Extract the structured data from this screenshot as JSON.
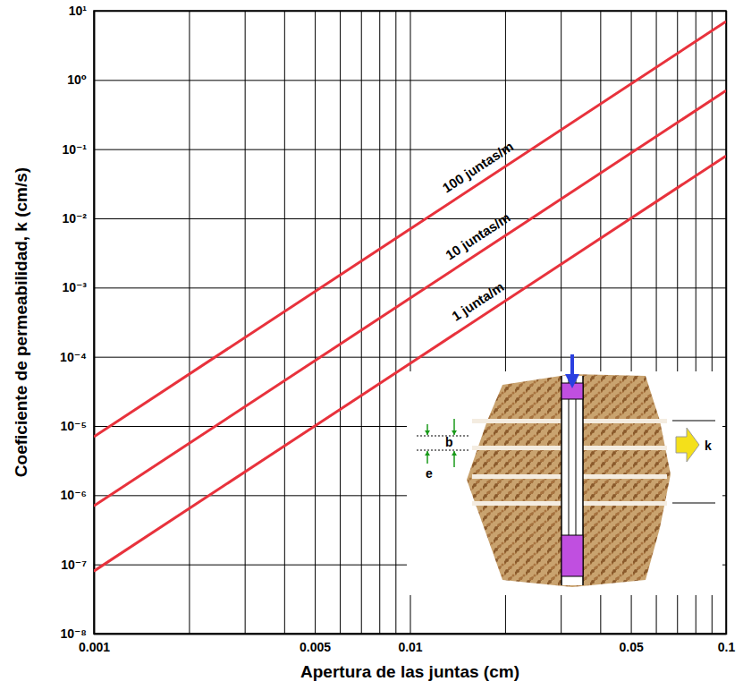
{
  "chart_data": {
    "type": "line",
    "log": true,
    "grid": true,
    "xlabel": "Apertura de las juntas (cm)",
    "ylabel": "Coeficiente de permeabilidad, k (cm/s)",
    "xlim": [
      0.001,
      0.1
    ],
    "ylim": [
      1e-08,
      10
    ],
    "xticks": [
      0.001,
      {
        "value": 0.002,
        "label": null
      },
      {
        "value": 0.003,
        "label": null
      },
      {
        "value": 0.004,
        "label": null
      },
      0.005,
      {
        "value": 0.006,
        "label": null
      },
      {
        "value": 0.007,
        "label": null
      },
      {
        "value": 0.008,
        "label": null
      },
      {
        "value": 0.009,
        "label": null
      },
      0.01,
      {
        "value": 0.02,
        "label": null
      },
      {
        "value": 0.03,
        "label": null
      },
      {
        "value": 0.04,
        "label": null
      },
      0.05,
      {
        "value": 0.06,
        "label": null
      },
      {
        "value": 0.07,
        "label": null
      },
      {
        "value": 0.08,
        "label": null
      },
      {
        "value": 0.09,
        "label": null
      },
      0.1
    ],
    "yticks": [
      {
        "value": 10,
        "label": "10¹"
      },
      {
        "value": 1,
        "label": "10⁰"
      },
      {
        "value": 0.1,
        "label": "10⁻¹"
      },
      {
        "value": 0.01,
        "label": "10⁻²"
      },
      {
        "value": 0.001,
        "label": "10⁻³"
      },
      {
        "value": 0.0001,
        "label": "10⁻⁴"
      },
      {
        "value": 1e-05,
        "label": "10⁻⁵"
      },
      {
        "value": 1e-06,
        "label": "10⁻⁶"
      },
      {
        "value": 1e-07,
        "label": "10⁻⁷"
      },
      {
        "value": 1e-08,
        "label": "10⁻⁸"
      }
    ],
    "x": [
      0.001,
      0.01,
      0.1
    ],
    "series": [
      {
        "name": "100 juntas/m",
        "color": "#e8323c",
        "values": [
          7e-06,
          0.007,
          7
        ]
      },
      {
        "name": "10 juntas/m",
        "color": "#e8323c",
        "values": [
          7e-07,
          0.0007,
          0.7
        ]
      },
      {
        "name": "1 junta/m",
        "color": "#e8323c",
        "values": [
          8e-08,
          8e-05,
          0.08
        ]
      }
    ],
    "annotations": [
      "b",
      "e",
      "k"
    ]
  }
}
